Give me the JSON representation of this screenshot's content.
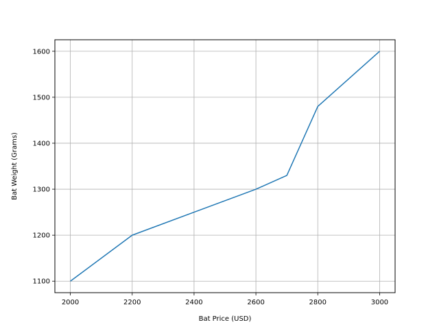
{
  "chart_data": {
    "type": "line",
    "title": "",
    "xlabel": "Bat Price (USD)",
    "ylabel": "Bat Weight (Grams)",
    "xlim": [
      1950,
      3050
    ],
    "ylim": [
      1075,
      1625
    ],
    "grid": true,
    "x_ticks": [
      "2000",
      "2200",
      "2400",
      "2600",
      "2800",
      "3000"
    ],
    "y_ticks": [
      "1100",
      "1200",
      "1300",
      "1400",
      "1500",
      "1600"
    ],
    "series": [
      {
        "color": "#1f77b4",
        "points": [
          {
            "x": 2000,
            "y": 1100
          },
          {
            "x": 2200,
            "y": 1200
          },
          {
            "x": 2400,
            "y": 1250
          },
          {
            "x": 2600,
            "y": 1300
          },
          {
            "x": 2700,
            "y": 1330
          },
          {
            "x": 2800,
            "y": 1480
          },
          {
            "x": 3000,
            "y": 1600
          }
        ]
      }
    ]
  }
}
